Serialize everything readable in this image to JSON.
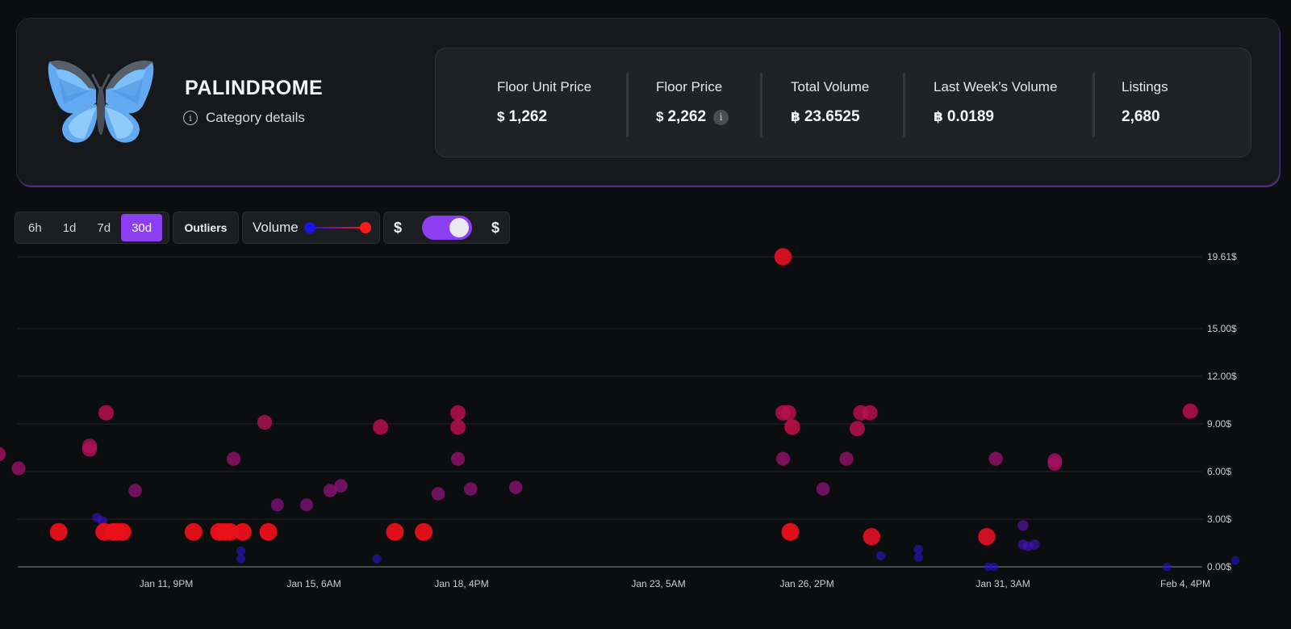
{
  "collection": {
    "name": "PALINDROME",
    "category_link": "Category details"
  },
  "stats": [
    {
      "label": "Floor Unit Price",
      "currency": "$",
      "value": "1,262",
      "icon": "stx-icon"
    },
    {
      "label": "Floor Price",
      "currency": "$",
      "value": "2,262",
      "icon": "stx-icon",
      "info": true
    },
    {
      "label": "Total Volume",
      "currency": "฿",
      "value": "23.6525",
      "icon": "bitcoin-icon"
    },
    {
      "label": "Last Week’s Volume",
      "currency": "฿",
      "value": "0.0189",
      "icon": "bitcoin-icon"
    },
    {
      "label": "Listings",
      "currency": "",
      "value": "2,680"
    }
  ],
  "toolbar": {
    "timeframes": [
      "6h",
      "1d",
      "7d",
      "30d"
    ],
    "active_timeframe": "30d",
    "outliers_label": "Outliers",
    "volume_label": "Volume",
    "volume_gradient": [
      "#1a14e6",
      "#ff1a1a"
    ],
    "currency_left": "$",
    "currency_right": "$",
    "currency_toggle_on": true
  },
  "colors": {
    "accent": "#8b3ff0",
    "low_volume": "#1a14e6",
    "high_volume": "#ff1a1a"
  },
  "chart_data": {
    "type": "scatter",
    "x_ticks": [
      "Jan 11, 9PM",
      "Jan 15, 6AM",
      "Jan 18, 4PM",
      "Jan 23, 5AM",
      "Jan 26, 2PM",
      "Jan 31, 3AM",
      "Feb 4, 4PM"
    ],
    "y_ticks": [
      "19.61$",
      "15.00$",
      "12.00$",
      "9.00$",
      "6.00$",
      "3.00$",
      "0.00$"
    ],
    "y_tick_values": [
      19.61,
      15,
      12,
      9,
      6,
      3,
      0
    ],
    "ylim": [
      0,
      19.61
    ],
    "grid": true,
    "points": [
      {
        "x": "Jan 8, 1AM",
        "y": 7.1,
        "v": 0.65
      },
      {
        "x": "Jan 8, 12PM",
        "y": 6.2,
        "v": 0.6
      },
      {
        "x": "Jan 9, 10AM",
        "y": 2.2,
        "v": 1.0
      },
      {
        "x": "Jan 10, 3AM",
        "y": 7.6,
        "v": 0.7
      },
      {
        "x": "Jan 10, 3AM",
        "y": 7.4,
        "v": 0.7
      },
      {
        "x": "Jan 10, 7AM",
        "y": 3.1,
        "v": 0.15
      },
      {
        "x": "Jan 10, 10AM",
        "y": 2.9,
        "v": 0.15
      },
      {
        "x": "Jan 10, 11AM",
        "y": 2.2,
        "v": 1.0
      },
      {
        "x": "Jan 10, 12PM",
        "y": 9.7,
        "v": 0.75
      },
      {
        "x": "Jan 10, 4PM",
        "y": 2.2,
        "v": 1.0
      },
      {
        "x": "Jan 10, 6PM",
        "y": 2.2,
        "v": 1.0
      },
      {
        "x": "Jan 10, 9PM",
        "y": 2.2,
        "v": 1.0
      },
      {
        "x": "Jan 11, 4AM",
        "y": 4.8,
        "v": 0.55
      },
      {
        "x": "Jan 12, 12PM",
        "y": 2.2,
        "v": 1.0
      },
      {
        "x": "Jan 13, 2AM",
        "y": 2.2,
        "v": 1.0
      },
      {
        "x": "Jan 13, 5AM",
        "y": 2.2,
        "v": 1.0
      },
      {
        "x": "Jan 13, 8AM",
        "y": 2.2,
        "v": 1.0
      },
      {
        "x": "Jan 13, 10AM",
        "y": 6.8,
        "v": 0.6
      },
      {
        "x": "Jan 13, 2PM",
        "y": 1.0,
        "v": 0.1
      },
      {
        "x": "Jan 13, 2PM",
        "y": 0.5,
        "v": 0.1
      },
      {
        "x": "Jan 13, 3PM",
        "y": 2.2,
        "v": 1.0
      },
      {
        "x": "Jan 14, 3AM",
        "y": 9.1,
        "v": 0.7
      },
      {
        "x": "Jan 14, 5AM",
        "y": 2.2,
        "v": 1.0
      },
      {
        "x": "Jan 14, 10AM",
        "y": 3.9,
        "v": 0.5
      },
      {
        "x": "Jan 15, 2AM",
        "y": 3.9,
        "v": 0.5
      },
      {
        "x": "Jan 15, 3PM",
        "y": 4.8,
        "v": 0.55
      },
      {
        "x": "Jan 15, 9PM",
        "y": 5.1,
        "v": 0.55
      },
      {
        "x": "Jan 16, 5PM",
        "y": 0.5,
        "v": 0.1
      },
      {
        "x": "Jan 16, 7PM",
        "y": 8.8,
        "v": 0.75
      },
      {
        "x": "Jan 17, 3AM",
        "y": 2.2,
        "v": 1.0
      },
      {
        "x": "Jan 17, 7PM",
        "y": 2.2,
        "v": 1.0
      },
      {
        "x": "Jan 18, 3AM",
        "y": 4.6,
        "v": 0.55
      },
      {
        "x": "Jan 18, 2PM",
        "y": 9.7,
        "v": 0.75
      },
      {
        "x": "Jan 18, 2PM",
        "y": 8.8,
        "v": 0.75
      },
      {
        "x": "Jan 18, 2PM",
        "y": 6.8,
        "v": 0.6
      },
      {
        "x": "Jan 18, 9PM",
        "y": 4.9,
        "v": 0.55
      },
      {
        "x": "Jan 19, 10PM",
        "y": 5.0,
        "v": 0.55
      },
      {
        "x": "Jan 26, 1AM",
        "y": 19.61,
        "v": 0.95
      },
      {
        "x": "Jan 26, 1AM",
        "y": 9.7,
        "v": 0.75
      },
      {
        "x": "Jan 26, 1AM",
        "y": 6.8,
        "v": 0.6
      },
      {
        "x": "Jan 26, 4AM",
        "y": 9.7,
        "v": 0.75
      },
      {
        "x": "Jan 26, 6AM",
        "y": 8.8,
        "v": 0.8
      },
      {
        "x": "Jan 26, 5AM",
        "y": 2.2,
        "v": 1.0
      },
      {
        "x": "Jan 26, 11PM",
        "y": 4.9,
        "v": 0.55
      },
      {
        "x": "Jan 27, 12PM",
        "y": 6.8,
        "v": 0.6
      },
      {
        "x": "Jan 27, 6PM",
        "y": 8.7,
        "v": 0.75
      },
      {
        "x": "Jan 27, 8PM",
        "y": 9.7,
        "v": 0.75
      },
      {
        "x": "Jan 28, 1AM",
        "y": 9.7,
        "v": 0.75
      },
      {
        "x": "Jan 28, 2AM",
        "y": 1.9,
        "v": 0.95
      },
      {
        "x": "Jan 28, 7AM",
        "y": 0.7,
        "v": 0.1
      },
      {
        "x": "Jan 29, 4AM",
        "y": 1.1,
        "v": 0.12
      },
      {
        "x": "Jan 29, 4AM",
        "y": 0.6,
        "v": 0.1
      },
      {
        "x": "Jan 30, 6PM",
        "y": 1.9,
        "v": 0.95
      },
      {
        "x": "Jan 30, 7PM",
        "y": 0.0,
        "v": 0.05
      },
      {
        "x": "Jan 30, 10PM",
        "y": 0.0,
        "v": 0.05
      },
      {
        "x": "Jan 30, 11PM",
        "y": 6.8,
        "v": 0.6
      },
      {
        "x": "Jan 31, 3PM",
        "y": 2.6,
        "v": 0.3
      },
      {
        "x": "Jan 31, 3PM",
        "y": 1.4,
        "v": 0.2
      },
      {
        "x": "Jan 31, 6PM",
        "y": 1.3,
        "v": 0.2
      },
      {
        "x": "Jan 31, 10PM",
        "y": 1.4,
        "v": 0.2
      },
      {
        "x": "Feb 1, 10AM",
        "y": 6.7,
        "v": 0.65
      },
      {
        "x": "Feb 1, 10AM",
        "y": 6.5,
        "v": 0.65
      },
      {
        "x": "Feb 4, 5AM",
        "y": 0.0,
        "v": 0.05
      },
      {
        "x": "Feb 4, 7PM",
        "y": 9.8,
        "v": 0.75
      },
      {
        "x": "Feb 5, 10PM",
        "y": 0.4,
        "v": 0.05
      }
    ]
  }
}
